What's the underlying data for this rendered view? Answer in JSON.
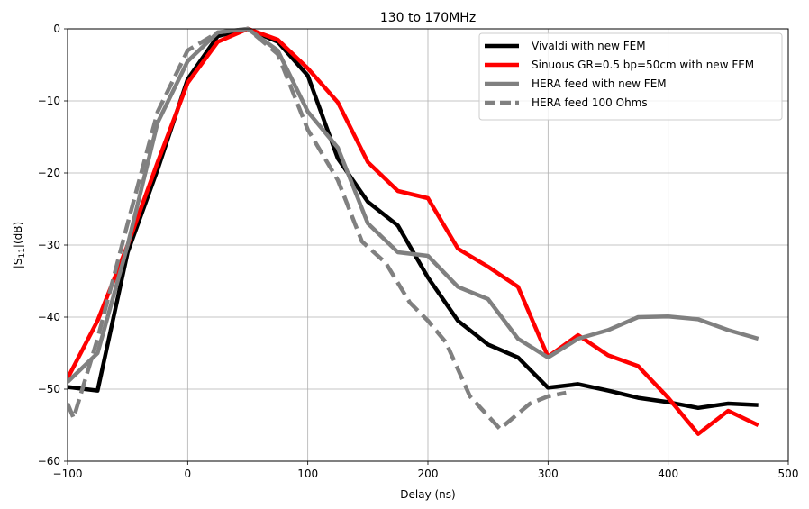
{
  "chart_data": {
    "type": "line",
    "title": "130 to 170MHz",
    "xlabel": "Delay (ns)",
    "ylabel_main": "|S",
    "ylabel_sub": "11",
    "ylabel_tail": "|(dB)",
    "xlim": [
      -100,
      500
    ],
    "ylim": [
      -60,
      0
    ],
    "xticks": [
      -100,
      0,
      100,
      200,
      300,
      400,
      500
    ],
    "yticks": [
      -60,
      -50,
      -40,
      -30,
      -20,
      -10,
      0
    ],
    "xtick_labels": [
      "−100",
      "0",
      "100",
      "200",
      "300",
      "400",
      "500"
    ],
    "ytick_labels": [
      "−60",
      "−50",
      "−40",
      "−30",
      "−20",
      "−10",
      "0"
    ],
    "grid": true,
    "legend_position": "top-right",
    "series": [
      {
        "name": "Vivaldi with new FEM",
        "color": "#000000",
        "dash": "solid",
        "x": [
          -100,
          -75,
          -50,
          -25,
          0,
          25,
          50,
          75,
          100,
          125,
          150,
          175,
          200,
          225,
          250,
          275,
          300,
          325,
          350,
          375,
          400,
          425,
          450,
          475
        ],
        "y": [
          -49.7,
          -50.2,
          -31.0,
          -19.5,
          -7.0,
          -1.0,
          0.0,
          -1.8,
          -6.5,
          -18.0,
          -24.0,
          -27.3,
          -34.5,
          -40.5,
          -43.8,
          -45.6,
          -49.8,
          -49.3,
          -50.2,
          -51.2,
          -51.8,
          -52.6,
          -52.0,
          -52.2
        ]
      },
      {
        "name": "Sinuous GR=0.5 bp=50cm with new FEM",
        "color": "#ff0000",
        "dash": "solid",
        "x": [
          -100,
          -75,
          -50,
          -25,
          0,
          25,
          50,
          75,
          100,
          125,
          150,
          175,
          200,
          225,
          250,
          275,
          300,
          325,
          350,
          375,
          400,
          425,
          450,
          475
        ],
        "y": [
          -48.5,
          -40.5,
          -30.0,
          -18.5,
          -7.5,
          -1.8,
          0.0,
          -1.5,
          -5.5,
          -10.2,
          -18.5,
          -22.5,
          -23.5,
          -30.5,
          -33.0,
          -35.8,
          -45.5,
          -42.5,
          -45.3,
          -46.8,
          -51.2,
          -56.2,
          -53.0,
          -55.0
        ]
      },
      {
        "name": "HERA feed with new FEM",
        "color": "#808080",
        "dash": "solid",
        "x": [
          -100,
          -75,
          -50,
          -25,
          0,
          25,
          50,
          75,
          100,
          125,
          150,
          175,
          200,
          225,
          250,
          275,
          300,
          325,
          350,
          375,
          400,
          425,
          450,
          475
        ],
        "y": [
          -49.0,
          -45.0,
          -30.0,
          -13.0,
          -4.5,
          -0.5,
          0.0,
          -3.0,
          -11.5,
          -16.5,
          -27.0,
          -31.0,
          -31.5,
          -35.8,
          -37.5,
          -43.0,
          -45.6,
          -43.0,
          -41.8,
          -40.0,
          -39.9,
          -40.3,
          -41.8,
          -43.0
        ]
      },
      {
        "name": "HERA feed 100 Ohms",
        "color": "#808080",
        "dash": "dashed",
        "x": [
          -100,
          -95,
          -75,
          -50,
          -25,
          0,
          25,
          50,
          75,
          100,
          125,
          145,
          165,
          185,
          200,
          215,
          235,
          260,
          285,
          300,
          315
        ],
        "y": [
          -52.0,
          -54.0,
          -43.0,
          -27.0,
          -11.5,
          -3.0,
          -0.5,
          0.0,
          -3.5,
          -14.0,
          -21.0,
          -29.5,
          -32.5,
          -38.0,
          -40.5,
          -43.5,
          -51.0,
          -55.5,
          -52.0,
          -51.0,
          -50.5
        ]
      }
    ]
  }
}
